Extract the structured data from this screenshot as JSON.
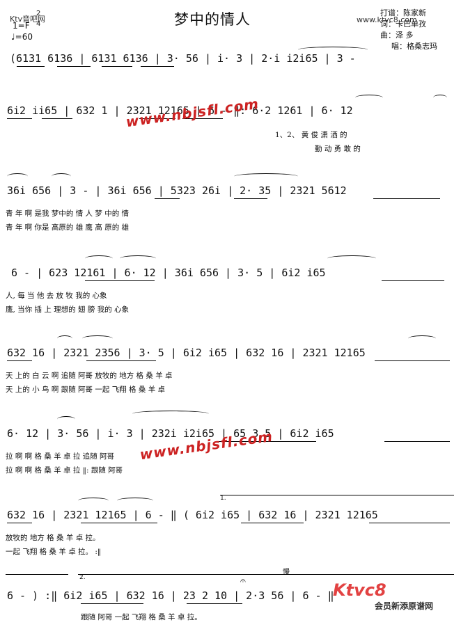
{
  "header": {
    "title": "梦中的情人",
    "site_watermark": "Ktv音吧网",
    "meter_top": "2",
    "meter_bottom": "4",
    "key": "1=F",
    "tempo": "♩=60",
    "credits": [
      "打谱：陈家新",
      "词：卡巴单孜",
      "曲：泽  多",
      "唱：格桑志玛"
    ],
    "url": "www.ktvc8.com"
  },
  "watermarks": [
    "www.nbjsfl.com",
    "www.nbjsfl.com"
  ],
  "rows": [
    {
      "notes": "(6131  6136 | 6131  6136 | 3·   56 | i·    3 | 2·i  i2i65 | 3  - "
    },
    {
      "notes": "6i2  ii65 | 632   1 | 2321  12165 | 6  - ‖: 6·2  1261 | 6·   12",
      "lyrics": [
        "1、2、  黄  俊  潇      洒        的",
        "勤  动  勇          敢        的"
      ]
    },
    {
      "notes": "36i  656 | 3  - | 36i  656 | 5323  26i | 2·   35 | 2321  5612",
      "lyrics": [
        "青    年      啊        是我  梦中的  情          人      梦  中的  情",
        "青    年      啊        你是  高原的  雄          鹰      高  原的  雄"
      ]
    },
    {
      "notes": "6  - | 623  12161 | 6·   12 | 36i  656 | 3·   5 | 6i2  i65",
      "lyrics": [
        "人,        每   当        他      去    放      牧      我的   心象",
        "鹰,      当你   插        上    理想的  翅    膀      我的   心象"
      ]
    },
    {
      "notes": "632   16 | 2321  2356 | 3·   5 | 6i2  i65 | 632   16 | 2321  12165",
      "lyrics": [
        "天    上的  白    云      啊    追随  阿哥  放牧的  地方  格  桑  羊    卓",
        "天    上的  小    鸟      啊    跟随  阿哥  一起    飞翔  格  桑  羊    卓"
      ]
    },
    {
      "notes": "6·   12 | 3·    56 | i·    3 | 232i  i2i65 | 65 3  5 | 6i2  i65",
      "lyrics": [
        "拉      啊      啊      格  桑  羊  卓  拉          追随    阿哥",
        "拉      啊      啊      格  桑  羊  卓  拉    ‖:  跟随    阿哥"
      ]
    },
    {
      "notes": "632   16 | 2321  12165 | 6  - ‖ ( 6i2  i65 | 632   16 | 2321  12165",
      "lyrics": [
        "放牧的  地方  格  桑  羊    卓    拉。",
        "一起    飞翔  格  桑  羊    卓    拉。  :‖"
      ],
      "volta": "1."
    },
    {
      "notes": "6  - ) :‖ 6i2  i65 | 632   16 | 23  2  10 | 2·3  56 | 6  - ‖",
      "lyrics": [
        "跟随    阿哥    一起    飞翔  格  桑    羊    卓    拉。"
      ],
      "volta": "2.",
      "mark": "慢"
    }
  ],
  "logo": {
    "main": "Ktvc8",
    "sub": "会员新添原谱网"
  }
}
